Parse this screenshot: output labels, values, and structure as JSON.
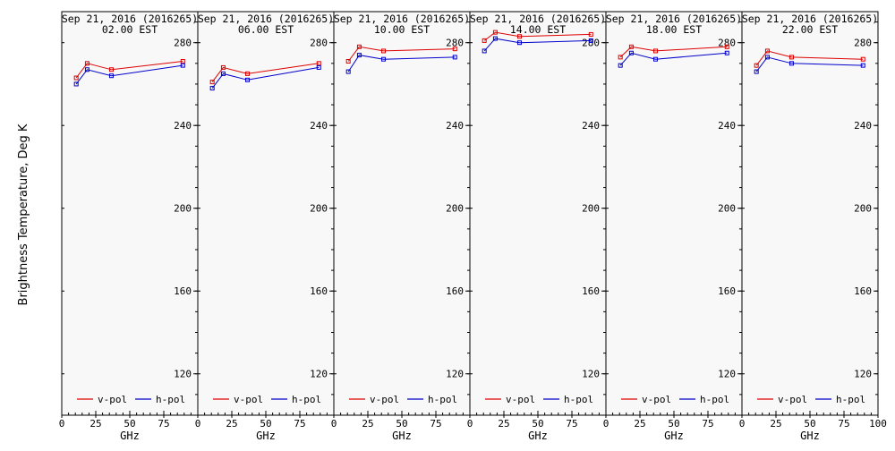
{
  "ylabel": "Brightness Temperature, Deg K",
  "chart_data": {
    "type": "line",
    "ylabel": "Brightness Temperature, Deg K",
    "xlabel": "GHz",
    "xlim": [
      0,
      100
    ],
    "ylim": [
      100,
      295
    ],
    "xticks": [
      0,
      25,
      50,
      75,
      100
    ],
    "yticks": [
      120,
      160,
      200,
      240,
      280
    ],
    "grid": false,
    "legend": "bottom",
    "colors": {
      "v-pol": "#dd0000",
      "h-pol": "#0000cc"
    },
    "panels": [
      {
        "title_line1": "Sep 21, 2016 (2016265)",
        "title_line2": "02.00 EST",
        "x": [
          10.65,
          18.7,
          36.5,
          89.0
        ],
        "series": [
          {
            "name": "v-pol",
            "values": [
              263,
              270,
              267,
              271
            ]
          },
          {
            "name": "h-pol",
            "values": [
              260,
              267,
              264,
              269
            ]
          }
        ]
      },
      {
        "title_line1": "Sep 21, 2016 (2016265)",
        "title_line2": "06.00 EST",
        "x": [
          10.65,
          18.7,
          36.5,
          89.0
        ],
        "series": [
          {
            "name": "v-pol",
            "values": [
              261,
              268,
              265,
              270
            ]
          },
          {
            "name": "h-pol",
            "values": [
              258,
              265,
              262,
              268
            ]
          }
        ]
      },
      {
        "title_line1": "Sep 21, 2016 (2016265)",
        "title_line2": "10.00 EST",
        "x": [
          10.65,
          18.7,
          36.5,
          89.0
        ],
        "series": [
          {
            "name": "v-pol",
            "values": [
              271,
              278,
              276,
              277
            ]
          },
          {
            "name": "h-pol",
            "values": [
              266,
              274,
              272,
              273
            ]
          }
        ]
      },
      {
        "title_line1": "Sep 21, 2016 (2016265)",
        "title_line2": "14.00 EST",
        "x": [
          10.65,
          18.7,
          36.5,
          89.0
        ],
        "series": [
          {
            "name": "v-pol",
            "values": [
              281,
              285,
              283,
              284
            ]
          },
          {
            "name": "h-pol",
            "values": [
              276,
              282,
              280,
              281
            ]
          }
        ]
      },
      {
        "title_line1": "Sep 21, 2016 (2016265)",
        "title_line2": "18.00 EST",
        "x": [
          10.65,
          18.7,
          36.5,
          89.0
        ],
        "series": [
          {
            "name": "v-pol",
            "values": [
              273,
              278,
              276,
              278
            ]
          },
          {
            "name": "h-pol",
            "values": [
              269,
              275,
              272,
              275
            ]
          }
        ]
      },
      {
        "title_line1": "Sep 21, 2016 (2016265)",
        "title_line2": "22.00 EST",
        "x": [
          10.65,
          18.7,
          36.5,
          89.0
        ],
        "series": [
          {
            "name": "v-pol",
            "values": [
              269,
              276,
              273,
              272
            ]
          },
          {
            "name": "h-pol",
            "values": [
              266,
              273,
              270,
              269
            ]
          }
        ]
      }
    ]
  }
}
